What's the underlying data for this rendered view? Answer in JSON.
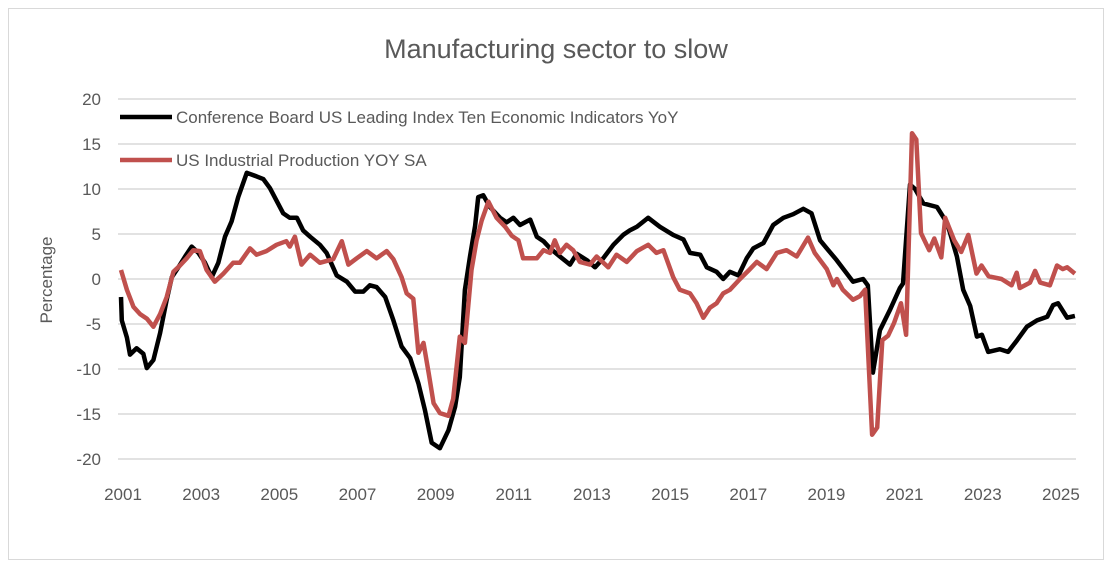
{
  "chart_data": {
    "type": "line",
    "title": "Manufacturing sector to slow",
    "xlabel": "",
    "ylabel": "Percentage",
    "ylim": [
      -20,
      20
    ],
    "yticks": [
      20,
      15,
      10,
      5,
      0,
      -5,
      -10,
      -15,
      -20
    ],
    "xticks": [
      "2001",
      "2003",
      "2005",
      "2007",
      "2009",
      "2011",
      "2013",
      "2015",
      "2017",
      "2019",
      "2021",
      "2023",
      "2025"
    ],
    "grid": true,
    "legend_position": "top-left",
    "series": [
      {
        "name": "Conference Board US Leading Index Ten Economic Indicators YoY",
        "color": "#000000",
        "points": [
          [
            2001.0,
            -2
          ],
          [
            2001.02,
            -4.6
          ],
          [
            2001.15,
            -6.5
          ],
          [
            2001.23,
            -8.4
          ],
          [
            2001.4,
            -7.7
          ],
          [
            2001.57,
            -8.3
          ],
          [
            2001.66,
            -9.9
          ],
          [
            2001.83,
            -9
          ],
          [
            2002.0,
            -6
          ],
          [
            2002.17,
            -2.3
          ],
          [
            2002.3,
            0.2
          ],
          [
            2002.47,
            1.3
          ],
          [
            2002.64,
            2.5
          ],
          [
            2002.81,
            3.6
          ],
          [
            2002.98,
            2.9
          ],
          [
            2003.15,
            1.8
          ],
          [
            2003.32,
            0.2
          ],
          [
            2003.49,
            1.8
          ],
          [
            2003.66,
            4.7
          ],
          [
            2003.83,
            6.4
          ],
          [
            2004.0,
            9.1
          ],
          [
            2004.22,
            11.8
          ],
          [
            2004.47,
            11.4
          ],
          [
            2004.64,
            11.1
          ],
          [
            2004.81,
            10.1
          ],
          [
            2005.15,
            7.3
          ],
          [
            2005.32,
            6.8
          ],
          [
            2005.5,
            6.8
          ],
          [
            2005.66,
            5.4
          ],
          [
            2005.84,
            4.7
          ],
          [
            2006.09,
            3.8
          ],
          [
            2006.26,
            2.9
          ],
          [
            2006.52,
            0.4
          ],
          [
            2006.78,
            -0.3
          ],
          [
            2006.99,
            -1.4
          ],
          [
            2007.2,
            -1.4
          ],
          [
            2007.37,
            -0.7
          ],
          [
            2007.54,
            -0.9
          ],
          [
            2007.76,
            -2
          ],
          [
            2007.97,
            -4.6
          ],
          [
            2008.18,
            -7.5
          ],
          [
            2008.4,
            -8.8
          ],
          [
            2008.61,
            -11.6
          ],
          [
            2008.78,
            -14.6
          ],
          [
            2008.95,
            -18.2
          ],
          [
            2009.16,
            -18.8
          ],
          [
            2009.38,
            -16.8
          ],
          [
            2009.55,
            -14.2
          ],
          [
            2009.67,
            -10.9
          ],
          [
            2009.8,
            -1.2
          ],
          [
            2009.93,
            2.5
          ],
          [
            2010.06,
            5.9
          ],
          [
            2010.14,
            9.1
          ],
          [
            2010.27,
            9.3
          ],
          [
            2010.44,
            8
          ],
          [
            2010.7,
            6.8
          ],
          [
            2010.87,
            6.3
          ],
          [
            2011.04,
            6.8
          ],
          [
            2011.21,
            6
          ],
          [
            2011.47,
            6.6
          ],
          [
            2011.64,
            4.7
          ],
          [
            2011.81,
            4.2
          ],
          [
            2011.98,
            3.4
          ],
          [
            2012.23,
            2.5
          ],
          [
            2012.49,
            1.6
          ],
          [
            2012.66,
            2.8
          ],
          [
            2012.92,
            2.1
          ],
          [
            2013.13,
            1.3
          ],
          [
            2013.34,
            2.3
          ],
          [
            2013.6,
            3.8
          ],
          [
            2013.85,
            4.9
          ],
          [
            2014.02,
            5.4
          ],
          [
            2014.2,
            5.8
          ],
          [
            2014.49,
            6.8
          ],
          [
            2014.79,
            5.8
          ],
          [
            2015.13,
            4.9
          ],
          [
            2015.39,
            4.4
          ],
          [
            2015.56,
            2.9
          ],
          [
            2015.82,
            2.7
          ],
          [
            2015.99,
            1.3
          ],
          [
            2016.24,
            0.8
          ],
          [
            2016.41,
            0
          ],
          [
            2016.58,
            0.8
          ],
          [
            2016.8,
            0.4
          ],
          [
            2017.01,
            2.3
          ],
          [
            2017.18,
            3.4
          ],
          [
            2017.44,
            4
          ],
          [
            2017.69,
            6
          ],
          [
            2017.95,
            6.8
          ],
          [
            2018.2,
            7.2
          ],
          [
            2018.46,
            7.8
          ],
          [
            2018.67,
            7.3
          ],
          [
            2018.89,
            4.3
          ],
          [
            2019.06,
            3.4
          ],
          [
            2019.31,
            2.1
          ],
          [
            2019.73,
            -0.3
          ],
          [
            2019.99,
            0
          ],
          [
            2020.11,
            -0.7
          ],
          [
            2020.24,
            -10.4
          ],
          [
            2020.42,
            -5.7
          ],
          [
            2020.68,
            -3.4
          ],
          [
            2020.93,
            -1
          ],
          [
            2021.01,
            -0.5
          ],
          [
            2021.19,
            10.5
          ],
          [
            2021.32,
            10
          ],
          [
            2021.53,
            8.4
          ],
          [
            2021.88,
            8
          ],
          [
            2022.14,
            6.2
          ],
          [
            2022.39,
            2.5
          ],
          [
            2022.55,
            -1.2
          ],
          [
            2022.73,
            -3
          ],
          [
            2022.9,
            -6.4
          ],
          [
            2023.03,
            -6.2
          ],
          [
            2023.19,
            -8.1
          ],
          [
            2023.49,
            -7.8
          ],
          [
            2023.7,
            -8.1
          ],
          [
            2023.93,
            -6.8
          ],
          [
            2024.18,
            -5.3
          ],
          [
            2024.44,
            -4.6
          ],
          [
            2024.7,
            -4.2
          ],
          [
            2024.85,
            -2.9
          ],
          [
            2024.98,
            -2.7
          ],
          [
            2025.21,
            -4.3
          ],
          [
            2025.41,
            -4.1
          ]
        ]
      },
      {
        "name": "US Industrial Production YOY SA",
        "color": "#C0504D",
        "points": [
          [
            2001.0,
            1
          ],
          [
            2001.15,
            -1.2
          ],
          [
            2001.32,
            -3.1
          ],
          [
            2001.49,
            -3.9
          ],
          [
            2001.66,
            -4.4
          ],
          [
            2001.83,
            -5.3
          ],
          [
            2002.0,
            -3.9
          ],
          [
            2002.17,
            -2
          ],
          [
            2002.34,
            0.8
          ],
          [
            2002.51,
            1.5
          ],
          [
            2002.68,
            2.3
          ],
          [
            2002.85,
            3.2
          ],
          [
            2003.02,
            3.1
          ],
          [
            2003.19,
            1
          ],
          [
            2003.4,
            -0.3
          ],
          [
            2003.62,
            0.6
          ],
          [
            2003.87,
            1.8
          ],
          [
            2004.04,
            1.8
          ],
          [
            2004.3,
            3.4
          ],
          [
            2004.47,
            2.7
          ],
          [
            2004.72,
            3.1
          ],
          [
            2004.98,
            3.8
          ],
          [
            2005.23,
            4.2
          ],
          [
            2005.32,
            3.6
          ],
          [
            2005.45,
            4.7
          ],
          [
            2005.62,
            1.6
          ],
          [
            2005.84,
            2.7
          ],
          [
            2006.09,
            1.8
          ],
          [
            2006.43,
            2.2
          ],
          [
            2006.65,
            4.2
          ],
          [
            2006.82,
            1.6
          ],
          [
            2007.03,
            2.3
          ],
          [
            2007.29,
            3.1
          ],
          [
            2007.54,
            2.3
          ],
          [
            2007.8,
            3.1
          ],
          [
            2007.97,
            2.2
          ],
          [
            2008.18,
            0.2
          ],
          [
            2008.31,
            -1.6
          ],
          [
            2008.48,
            -2.2
          ],
          [
            2008.61,
            -8.2
          ],
          [
            2008.74,
            -7.1
          ],
          [
            2008.87,
            -10.4
          ],
          [
            2009.0,
            -13.8
          ],
          [
            2009.16,
            -14.9
          ],
          [
            2009.38,
            -15.2
          ],
          [
            2009.5,
            -13.3
          ],
          [
            2009.67,
            -6.4
          ],
          [
            2009.8,
            -7.1
          ],
          [
            2009.97,
            1
          ],
          [
            2010.1,
            4.3
          ],
          [
            2010.23,
            6.5
          ],
          [
            2010.4,
            8.6
          ],
          [
            2010.61,
            6.8
          ],
          [
            2010.83,
            5.8
          ],
          [
            2011.0,
            4.8
          ],
          [
            2011.17,
            4.3
          ],
          [
            2011.29,
            2.3
          ],
          [
            2011.64,
            2.3
          ],
          [
            2011.81,
            3.2
          ],
          [
            2011.98,
            2.9
          ],
          [
            2012.1,
            4.3
          ],
          [
            2012.23,
            2.9
          ],
          [
            2012.4,
            3.8
          ],
          [
            2012.57,
            3.2
          ],
          [
            2012.74,
            1.9
          ],
          [
            2013.0,
            1.6
          ],
          [
            2013.17,
            2.5
          ],
          [
            2013.47,
            1.3
          ],
          [
            2013.68,
            2.7
          ],
          [
            2013.94,
            1.9
          ],
          [
            2014.2,
            3.1
          ],
          [
            2014.49,
            3.8
          ],
          [
            2014.7,
            2.9
          ],
          [
            2014.88,
            3.2
          ],
          [
            2015.13,
            0.2
          ],
          [
            2015.3,
            -1.2
          ],
          [
            2015.56,
            -1.6
          ],
          [
            2015.73,
            -2.7
          ],
          [
            2015.9,
            -4.3
          ],
          [
            2016.07,
            -3.2
          ],
          [
            2016.24,
            -2.7
          ],
          [
            2016.41,
            -1.6
          ],
          [
            2016.58,
            -1.2
          ],
          [
            2016.84,
            0
          ],
          [
            2017.05,
            0.9
          ],
          [
            2017.27,
            1.9
          ],
          [
            2017.52,
            1.1
          ],
          [
            2017.78,
            2.9
          ],
          [
            2018.03,
            3.2
          ],
          [
            2018.29,
            2.5
          ],
          [
            2018.58,
            4.6
          ],
          [
            2018.75,
            2.9
          ],
          [
            2019.06,
            1.1
          ],
          [
            2019.23,
            -0.7
          ],
          [
            2019.32,
            0
          ],
          [
            2019.47,
            -1.2
          ],
          [
            2019.73,
            -2.3
          ],
          [
            2019.91,
            -1.9
          ],
          [
            2020.04,
            -1.2
          ],
          [
            2020.22,
            -17.3
          ],
          [
            2020.35,
            -16.5
          ],
          [
            2020.48,
            -6.8
          ],
          [
            2020.63,
            -6.3
          ],
          [
            2020.78,
            -4.9
          ],
          [
            2020.96,
            -2.7
          ],
          [
            2021.09,
            -6.2
          ],
          [
            2021.24,
            16.2
          ],
          [
            2021.35,
            15.5
          ],
          [
            2021.47,
            5.1
          ],
          [
            2021.68,
            3.2
          ],
          [
            2021.81,
            4.5
          ],
          [
            2021.99,
            2.4
          ],
          [
            2022.09,
            6.8
          ],
          [
            2022.32,
            4.3
          ],
          [
            2022.5,
            3
          ],
          [
            2022.68,
            4.9
          ],
          [
            2022.89,
            0.6
          ],
          [
            2023.02,
            1.5
          ],
          [
            2023.2,
            0.3
          ],
          [
            2023.53,
            0
          ],
          [
            2023.79,
            -0.7
          ],
          [
            2023.92,
            0.7
          ],
          [
            2024.0,
            -1
          ],
          [
            2024.26,
            -0.4
          ],
          [
            2024.39,
            0.9
          ],
          [
            2024.52,
            -0.4
          ],
          [
            2024.77,
            -0.7
          ],
          [
            2024.95,
            1.5
          ],
          [
            2025.1,
            1.1
          ],
          [
            2025.21,
            1.3
          ],
          [
            2025.41,
            0.6
          ]
        ]
      }
    ]
  }
}
